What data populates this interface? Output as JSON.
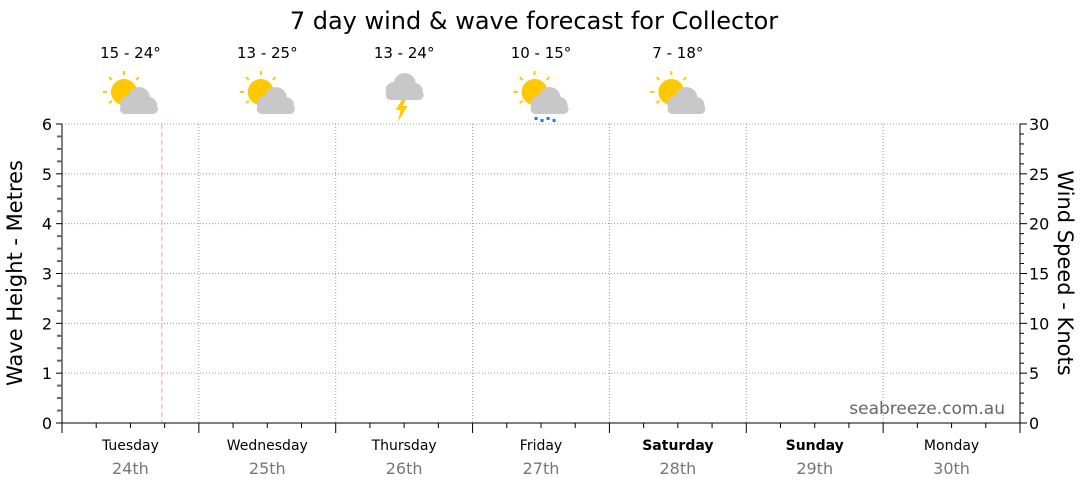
{
  "chart_data": {
    "type": "line",
    "title": "7 day wind & wave forecast for Collector",
    "ylabel": "Wave Height - Metres",
    "y2label": "Wind Speed - Knots",
    "ylim": [
      0,
      6
    ],
    "y2lim": [
      0,
      30
    ],
    "yticks": [
      "0",
      "1",
      "2",
      "3",
      "4",
      "5",
      "6"
    ],
    "y2ticks": [
      "0",
      "5",
      "10",
      "15",
      "20",
      "25",
      "30"
    ],
    "grid": true,
    "series": [],
    "current_time_marker_day_fraction": 0.73,
    "days": [
      {
        "name": "Tuesday",
        "date": "24th",
        "bold": false,
        "temp": "15 - 24°",
        "icon": "partly-cloudy-icon"
      },
      {
        "name": "Wednesday",
        "date": "25th",
        "bold": false,
        "temp": "13 - 25°",
        "icon": "partly-cloudy-icon"
      },
      {
        "name": "Thursday",
        "date": "26th",
        "bold": false,
        "temp": "13 - 24°",
        "icon": "thunderstorm-icon"
      },
      {
        "name": "Friday",
        "date": "27th",
        "bold": false,
        "temp": "10 - 15°",
        "icon": "partly-cloudy-showers-icon"
      },
      {
        "name": "Saturday",
        "date": "28th",
        "bold": true,
        "temp": "7 - 18°",
        "icon": "partly-cloudy-icon"
      },
      {
        "name": "Sunday",
        "date": "29th",
        "bold": true,
        "temp": "",
        "icon": ""
      },
      {
        "name": "Monday",
        "date": "30th",
        "bold": false,
        "temp": "",
        "icon": ""
      }
    ],
    "watermark": "seabreeze.com.au",
    "colors": {
      "sun": "#ffc800",
      "cloud": "#c8c8c8",
      "rain": "#1e78ff",
      "marker": "#ff9999",
      "grid": "#999999"
    }
  }
}
